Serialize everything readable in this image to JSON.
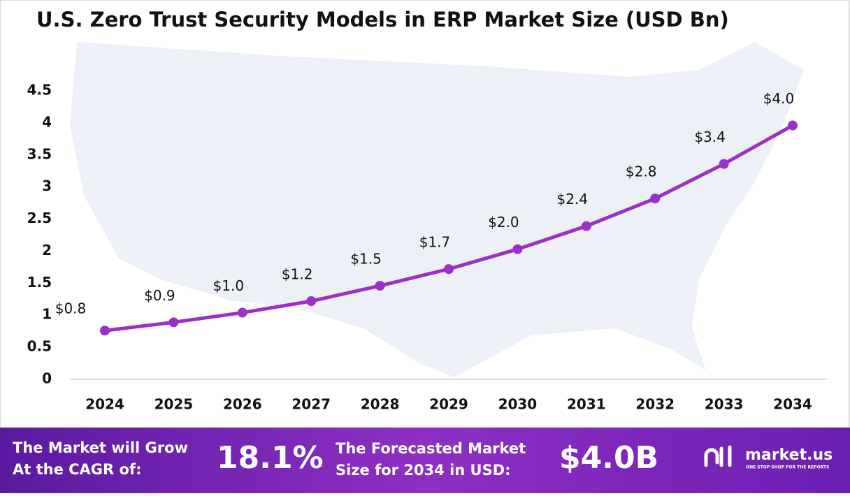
{
  "chart_data": {
    "type": "line",
    "title": "U.S. Zero Trust Security Models in ERP Market Size (USD Bn)",
    "categories": [
      "2024",
      "2025",
      "2026",
      "2027",
      "2028",
      "2029",
      "2030",
      "2031",
      "2032",
      "2033",
      "2034"
    ],
    "values": [
      0.76,
      0.89,
      1.04,
      1.22,
      1.46,
      1.72,
      2.03,
      2.39,
      2.82,
      3.36,
      3.96
    ],
    "value_labels": [
      "$0.8",
      "$0.9",
      "$1.0",
      "$1.2",
      "$1.5",
      "$1.7",
      "$2.0",
      "$2.4",
      "$2.8",
      "$3.4",
      "$4.0"
    ],
    "color": "#9b30c8",
    "ylim": [
      0,
      4.5
    ],
    "yticks": [
      0,
      0.5,
      1,
      1.5,
      2,
      2.5,
      3,
      3.5,
      4,
      4.5
    ],
    "grid": false
  },
  "footer": {
    "cagr_text": [
      "The Market will Grow",
      "At the CAGR of:"
    ],
    "cagr_value": "18.1%",
    "forecast_text": [
      "The Forecasted Market",
      "Size for 2034 in USD:"
    ],
    "forecast_value": "$4.0B",
    "brand": "market.us",
    "tagline": "ONE STOP SHOP FOR THE REPORTS"
  }
}
